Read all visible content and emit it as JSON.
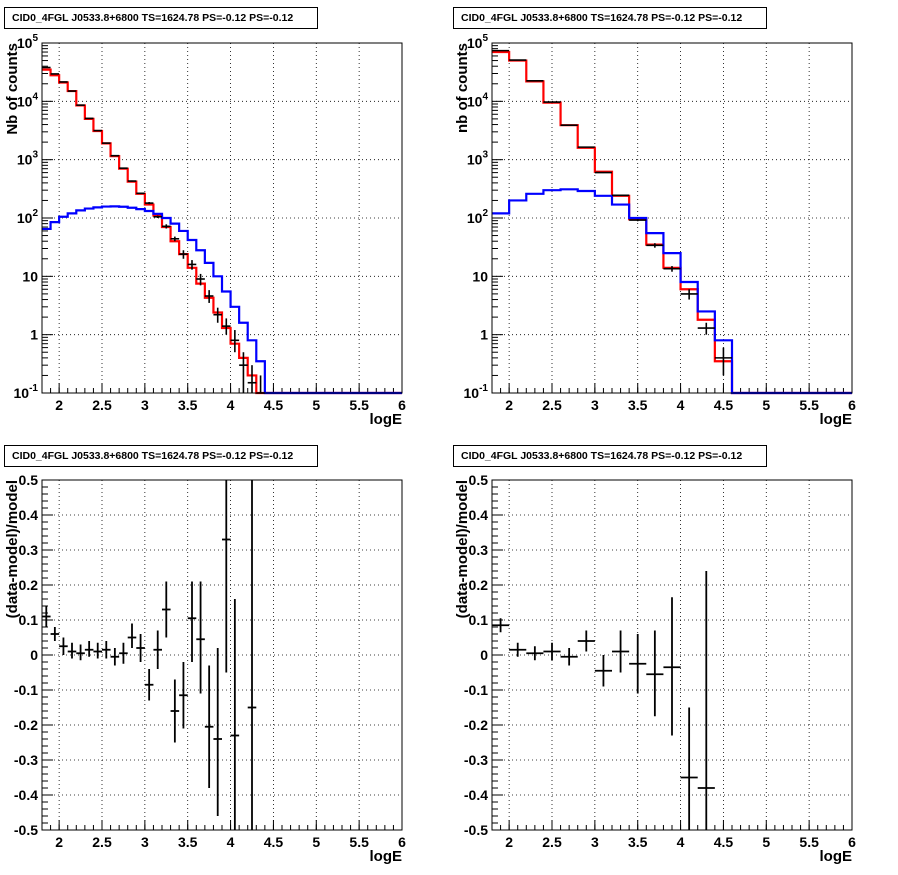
{
  "chart_data": [
    {
      "type": "step-histogram",
      "title": "CID0_4FGL J0533.8+6800 TS=1624.78 PS=-0.12 PS=-0.12",
      "xlabel": "logE",
      "ylabel": "Nb of counts",
      "xlim": [
        1.8,
        6.0
      ],
      "ylim": [
        0.1,
        100000
      ],
      "yscale": "log",
      "grid": true,
      "xticks": [
        "2",
        "2.5",
        "3",
        "3.5",
        "4",
        "4.5",
        "5",
        "5.5",
        "6"
      ],
      "yticks": [
        "10^-1",
        "1",
        "10",
        "10^2",
        "10^3",
        "10^4",
        "10^5"
      ],
      "bin_edges": [
        1.8,
        1.9,
        2.0,
        2.1,
        2.2,
        2.3,
        2.4,
        2.5,
        2.6,
        2.7,
        2.8,
        2.9,
        3.0,
        3.1,
        3.2,
        3.3,
        3.4,
        3.5,
        3.6,
        3.7,
        3.8,
        3.9,
        4.0,
        4.1,
        4.2,
        4.3,
        4.4,
        4.5,
        4.6,
        4.7,
        4.8,
        4.9,
        5.0,
        5.1,
        5.2,
        5.3,
        5.4,
        5.5,
        5.6,
        5.7,
        5.8,
        5.9,
        6.0
      ],
      "series": [
        {
          "color": "#ff0000",
          "values": [
            35000,
            28000,
            21000,
            15000,
            8500,
            5000,
            3100,
            1900,
            1150,
            700,
            420,
            260,
            170,
            110,
            70,
            40,
            24,
            14,
            7.5,
            4.3,
            2.4,
            1.3,
            0.7,
            0.4,
            0.2,
            0.1,
            0.1,
            0.1,
            0.1,
            0.1,
            0.1,
            0.1,
            0.1,
            0.1,
            0.1,
            0.1,
            0.1,
            0.1,
            0.1,
            0.1,
            0.1,
            0.1
          ]
        },
        {
          "color": "#0000ff",
          "values": [
            65,
            85,
            105,
            120,
            135,
            145,
            152,
            157,
            158,
            156,
            150,
            142,
            132,
            118,
            100,
            80,
            60,
            42,
            28,
            17,
            10,
            5.5,
            3,
            1.6,
            0.8,
            0.35,
            0.1,
            0.1,
            0.1,
            0.1,
            0.1,
            0.1,
            0.1,
            0.1,
            0.1,
            0.1,
            0.1,
            0.1,
            0.1,
            0.1,
            0.1,
            0.1
          ]
        },
        {
          "color": "#000000",
          "kind": "data",
          "x": [
            1.85,
            1.95,
            2.05,
            2.15,
            2.25,
            2.35,
            2.45,
            2.55,
            2.65,
            2.75,
            2.85,
            2.95,
            3.05,
            3.15,
            3.25,
            3.35,
            3.45,
            3.55,
            3.65,
            3.75,
            3.85,
            3.95,
            4.05,
            4.15,
            4.25,
            4.35
          ],
          "values": [
            38000,
            29500,
            21500,
            15000,
            8600,
            5100,
            3150,
            1920,
            1170,
            715,
            430,
            265,
            180,
            105,
            72,
            44,
            24,
            16,
            9,
            4.6,
            2.2,
            1.4,
            0.8,
            0.3,
            0.15,
            0.05
          ],
          "ylow": [
            37800,
            29300,
            21300,
            14900,
            8500,
            5050,
            3100,
            1880,
            1150,
            700,
            420,
            258,
            172,
            100,
            66,
            40,
            20,
            13,
            7,
            3.5,
            1.6,
            1,
            0.5,
            0.1,
            0.1,
            0.1
          ],
          "yhigh": [
            38200,
            29700,
            21700,
            15100,
            8700,
            5150,
            3200,
            1960,
            1190,
            730,
            440,
            272,
            188,
            110,
            78,
            48,
            28,
            19,
            11,
            5.8,
            2.9,
            1.9,
            1.2,
            0.5,
            0.3,
            0.2
          ]
        }
      ]
    },
    {
      "type": "step-histogram",
      "title": "CID0_4FGL J0533.8+6800 TS=1624.78 PS=-0.12 PS=-0.12",
      "xlabel": "logE",
      "ylabel": "nb of counts",
      "xlim": [
        1.8,
        6.0
      ],
      "ylim": [
        0.1,
        100000
      ],
      "yscale": "log",
      "grid": true,
      "xticks": [
        "2",
        "2.5",
        "3",
        "3.5",
        "4",
        "4.5",
        "5",
        "5.5",
        "6"
      ],
      "yticks": [
        "10^-1",
        "1",
        "10",
        "10^2",
        "10^3",
        "10^4",
        "10^5"
      ],
      "bin_edges": [
        1.8,
        2.0,
        2.2,
        2.4,
        2.6,
        2.8,
        3.0,
        3.2,
        3.4,
        3.6,
        3.8,
        4.0,
        4.2,
        4.4,
        4.6,
        4.8,
        5.0,
        5.2,
        5.4,
        5.6,
        5.8,
        6.0
      ],
      "series": [
        {
          "color": "#ff0000",
          "values": [
            70000,
            50000,
            22000,
            9500,
            3900,
            1600,
            620,
            240,
            95,
            35,
            14,
            6,
            1.8,
            0.35,
            0.1,
            0.1,
            0.1,
            0.1,
            0.1,
            0.1,
            0.1
          ]
        },
        {
          "color": "#0000ff",
          "values": [
            120,
            200,
            260,
            300,
            310,
            290,
            240,
            170,
            100,
            55,
            25,
            8,
            2.5,
            0.8,
            0.1,
            0.1,
            0.1,
            0.1,
            0.1,
            0.1,
            0.1
          ]
        },
        {
          "color": "#000000",
          "kind": "data",
          "x": [
            1.9,
            2.1,
            2.3,
            2.5,
            2.7,
            2.9,
            3.1,
            3.3,
            3.5,
            3.7,
            3.9,
            4.1,
            4.3,
            4.5
          ],
          "values": [
            74000,
            51000,
            22500,
            9700,
            3900,
            1640,
            600,
            245,
            92,
            34,
            13.5,
            5,
            1.3,
            0.4
          ],
          "ylow": [
            73500,
            50500,
            22300,
            9600,
            3850,
            1620,
            590,
            240,
            88,
            31,
            12,
            4,
            1,
            0.2
          ],
          "yhigh": [
            74500,
            51500,
            22700,
            9800,
            3950,
            1660,
            610,
            250,
            96,
            37,
            15,
            6,
            1.6,
            0.6
          ]
        }
      ]
    },
    {
      "type": "errorbar",
      "title": "CID0_4FGL J0533.8+6800 TS=1624.78 PS=-0.12 PS=-0.12",
      "xlabel": "logE",
      "ylabel": "(data-model)/model",
      "xlim": [
        1.8,
        6.0
      ],
      "ylim": [
        -0.5,
        0.5
      ],
      "grid": true,
      "xticks": [
        "2",
        "2.5",
        "3",
        "3.5",
        "4",
        "4.5",
        "5",
        "5.5",
        "6"
      ],
      "yticks": [
        "-0.5",
        "-0.4",
        "-0.3",
        "-0.2",
        "-0.1",
        "0",
        "0.1",
        "0.2",
        "0.3",
        "0.4",
        "0.5"
      ],
      "xerr": 0.05,
      "points": {
        "x": [
          1.85,
          1.95,
          2.05,
          2.15,
          2.25,
          2.35,
          2.45,
          2.55,
          2.65,
          2.75,
          2.85,
          2.95,
          3.05,
          3.15,
          3.25,
          3.35,
          3.45,
          3.55,
          3.65,
          3.75,
          3.85,
          3.95,
          4.05,
          4.25
        ],
        "y": [
          0.11,
          0.06,
          0.025,
          0.01,
          0.005,
          0.015,
          0.01,
          0.015,
          -0.005,
          0.005,
          0.05,
          0.02,
          -0.085,
          0.015,
          0.13,
          -0.16,
          -0.115,
          0.105,
          0.045,
          -0.205,
          -0.24,
          0.33,
          -0.23,
          -0.15
        ],
        "ylow": [
          0.08,
          0.04,
          0.0,
          -0.01,
          -0.015,
          -0.005,
          -0.01,
          -0.01,
          -0.03,
          -0.025,
          0.02,
          -0.02,
          -0.13,
          -0.04,
          0.05,
          -0.25,
          -0.21,
          -0.02,
          -0.11,
          -0.38,
          -0.46,
          -0.05,
          -0.52,
          -0.52
        ],
        "yhigh": [
          0.14,
          0.08,
          0.05,
          0.035,
          0.03,
          0.04,
          0.035,
          0.04,
          0.02,
          0.035,
          0.09,
          0.06,
          -0.04,
          0.07,
          0.21,
          -0.07,
          -0.02,
          0.21,
          0.21,
          -0.03,
          0.02,
          0.52,
          0.16,
          0.52
        ]
      }
    },
    {
      "type": "errorbar",
      "title": "CID0_4FGL J0533.8+6800 TS=1624.78 PS=-0.12 PS=-0.12",
      "xlabel": "logE",
      "ylabel": "(data-model)/model",
      "xlim": [
        1.8,
        6.0
      ],
      "ylim": [
        -0.5,
        0.5
      ],
      "grid": true,
      "xticks": [
        "2",
        "2.5",
        "3",
        "3.5",
        "4",
        "4.5",
        "5",
        "5.5",
        "6"
      ],
      "yticks": [
        "-0.5",
        "-0.4",
        "-0.3",
        "-0.2",
        "-0.1",
        "0",
        "0.1",
        "0.2",
        "0.3",
        "0.4",
        "0.5"
      ],
      "xerr": 0.1,
      "points": {
        "x": [
          1.9,
          2.1,
          2.3,
          2.5,
          2.7,
          2.9,
          3.1,
          3.3,
          3.5,
          3.7,
          3.9,
          4.1,
          4.3
        ],
        "y": [
          0.085,
          0.015,
          0.005,
          0.01,
          -0.005,
          0.04,
          -0.045,
          0.01,
          -0.025,
          -0.055,
          -0.035,
          -0.35,
          -0.38
        ],
        "ylow": [
          0.065,
          -0.005,
          -0.015,
          -0.015,
          -0.03,
          0.01,
          -0.09,
          -0.05,
          -0.11,
          -0.175,
          -0.23,
          -0.52,
          -0.52
        ],
        "yhigh": [
          0.105,
          0.035,
          0.025,
          0.035,
          0.02,
          0.07,
          0.0,
          0.07,
          0.06,
          0.07,
          0.165,
          -0.15,
          0.24
        ]
      }
    }
  ]
}
